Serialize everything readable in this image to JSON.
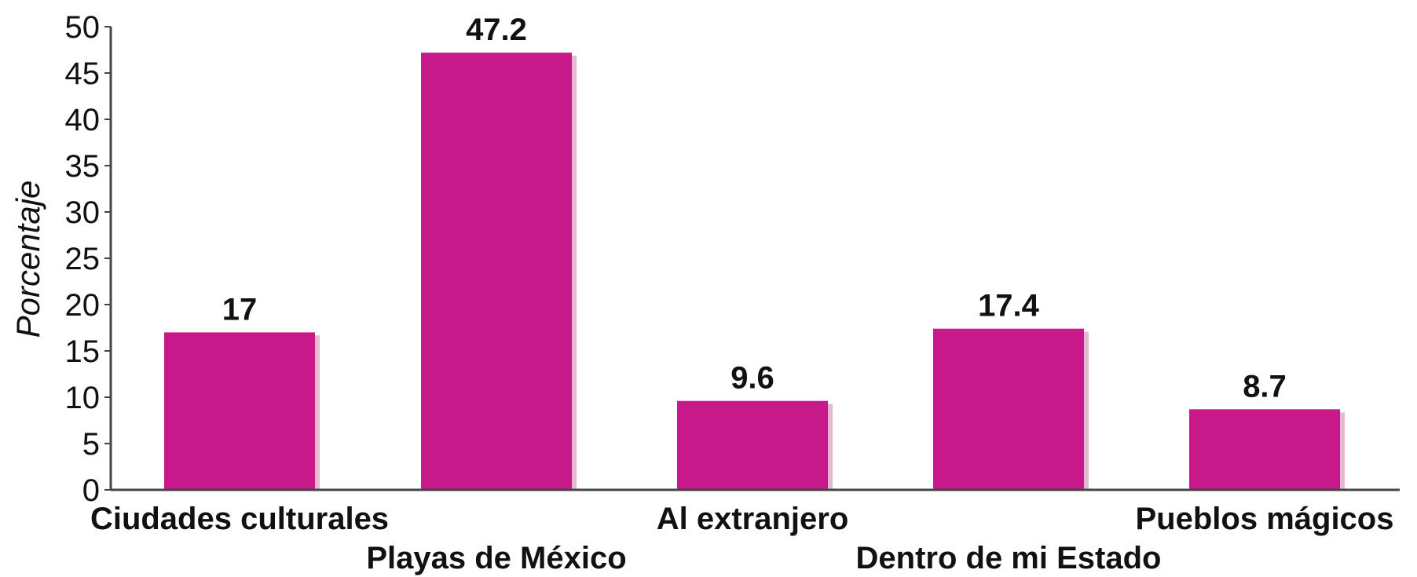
{
  "chart_data": {
    "type": "bar",
    "title": "",
    "xlabel": "",
    "ylabel": "Porcentaje",
    "ylim": [
      0,
      50
    ],
    "yticks": [
      0,
      5,
      10,
      15,
      20,
      25,
      30,
      35,
      40,
      45,
      50
    ],
    "categories": [
      "Ciudades culturales",
      "Playas de México",
      "Al extranjero",
      "Dentro de mi Estado",
      "Pueblos mágicos"
    ],
    "values": [
      17,
      47.2,
      9.6,
      17.4,
      8.7
    ],
    "data_labels": [
      "17",
      "47.2",
      "9.6",
      "17.4",
      "8.7"
    ],
    "grid": false,
    "legend": "none",
    "bar_color": "#c8198a",
    "bar_shadow_color": "#e6b8d2"
  }
}
